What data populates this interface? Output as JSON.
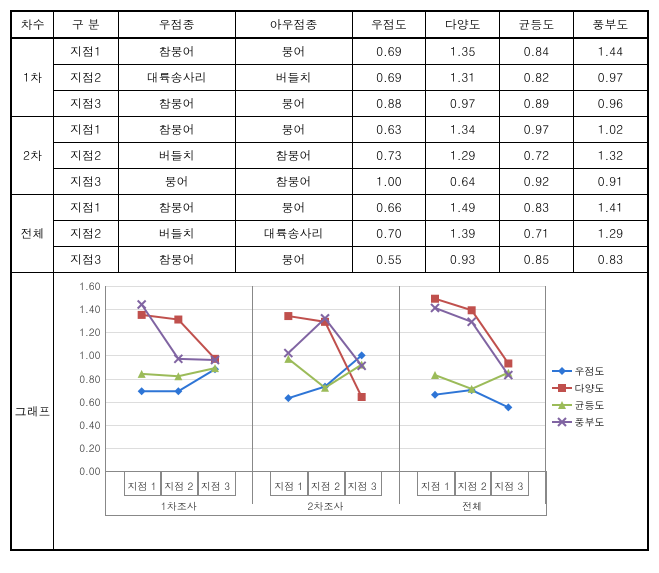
{
  "table": {
    "headers": [
      "차수",
      "구 분",
      "우점종",
      "아우점종",
      "우점도",
      "다양도",
      "균등도",
      "풍부도"
    ],
    "groups": [
      {
        "label": "1차",
        "rows": [
          {
            "point": "지점1",
            "dom": "참붕어",
            "sub": "붕어",
            "v": [
              0.69,
              1.35,
              0.84,
              1.44
            ]
          },
          {
            "point": "지점2",
            "dom": "대륙송사리",
            "sub": "버들치",
            "v": [
              0.69,
              1.31,
              0.82,
              0.97
            ]
          },
          {
            "point": "지점3",
            "dom": "참붕어",
            "sub": "붕어",
            "v": [
              0.88,
              0.97,
              0.89,
              0.96
            ]
          }
        ]
      },
      {
        "label": "2차",
        "rows": [
          {
            "point": "지점1",
            "dom": "참붕어",
            "sub": "붕어",
            "v": [
              0.63,
              1.34,
              0.97,
              1.02
            ]
          },
          {
            "point": "지점2",
            "dom": "버들치",
            "sub": "참붕어",
            "v": [
              0.73,
              1.29,
              0.72,
              1.32
            ]
          },
          {
            "point": "지점3",
            "dom": "붕어",
            "sub": "참붕어",
            "v": [
              1.0,
              0.64,
              0.92,
              0.91
            ]
          }
        ]
      },
      {
        "label": "전체",
        "rows": [
          {
            "point": "지점1",
            "dom": "참붕어",
            "sub": "붕어",
            "v": [
              0.66,
              1.49,
              0.83,
              1.41
            ]
          },
          {
            "point": "지점2",
            "dom": "버들치",
            "sub": "대륙송사리",
            "v": [
              0.7,
              1.39,
              0.71,
              1.29
            ]
          },
          {
            "point": "지점3",
            "dom": "참붕어",
            "sub": "붕어",
            "v": [
              0.55,
              0.93,
              0.85,
              0.83
            ]
          }
        ]
      }
    ],
    "chartLabel": "그래프"
  },
  "chart": {
    "ylim": [
      0,
      1.6
    ],
    "ytick_step": 0.2,
    "gridline_color": "#dddddd",
    "panels": [
      "1차조사",
      "2차조사",
      "전체"
    ],
    "pointLabels": [
      "지점 1",
      "지점 2",
      "지점 3"
    ],
    "series": [
      {
        "name": "우점도",
        "color": "#2e75d6",
        "marker": "diamond"
      },
      {
        "name": "다양도",
        "color": "#c0504d",
        "marker": "square"
      },
      {
        "name": "균등도",
        "color": "#9bbb59",
        "marker": "triangle"
      },
      {
        "name": "풍부도",
        "color": "#8064a2",
        "marker": "x"
      }
    ],
    "data": {
      "우점도": [
        [
          0.69,
          0.69,
          0.88
        ],
        [
          0.63,
          0.73,
          1.0
        ],
        [
          0.66,
          0.7,
          0.55
        ]
      ],
      "다양도": [
        [
          1.35,
          1.31,
          0.97
        ],
        [
          1.34,
          1.29,
          0.64
        ],
        [
          1.49,
          1.39,
          0.93
        ]
      ],
      "균등도": [
        [
          0.84,
          0.82,
          0.89
        ],
        [
          0.97,
          0.72,
          0.92
        ],
        [
          0.83,
          0.71,
          0.85
        ]
      ],
      "풍부도": [
        [
          1.44,
          0.97,
          0.96
        ],
        [
          1.02,
          1.32,
          0.91
        ],
        [
          1.41,
          1.29,
          0.83
        ]
      ]
    }
  }
}
